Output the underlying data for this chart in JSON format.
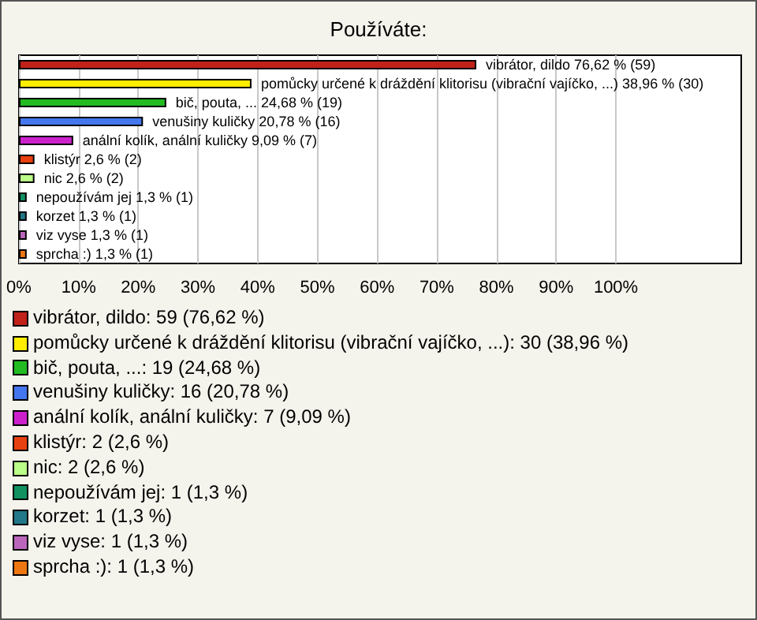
{
  "chart_data": {
    "type": "bar",
    "orientation": "horizontal",
    "title": "Používáte:",
    "categories": [
      null,
      null,
      null,
      null,
      null,
      null,
      null,
      null,
      null,
      null,
      null
    ],
    "values": [
      76.62,
      38.96,
      24.68,
      20.78,
      9.09,
      2.6,
      2.6,
      1.3,
      1.3,
      1.3,
      1.3
    ],
    "value_labels": [
      "vibrátor, dildo 76,62 % (59)",
      "pomůcky určené k dráždění klitorisu (vibrační vajíčko, ...) 38,96 % (30)",
      "bič, pouta, ... 24,68 % (19)",
      "venušiny kuličky 20,78 % (16)",
      "anální kolík, anální kuličky 9,09 % (7)",
      "klistýr 2,6 % (2)",
      "nic 2,6 % (2)",
      "nepoužívám jej 1,3 % (1)",
      "korzet 1,3 % (1)",
      "viz vyse 1,3 % (1)",
      "sprcha :) 1,3 % (1)"
    ],
    "colors": [
      "#c0221a",
      "#ffee00",
      "#22bb22",
      "#4477ee",
      "#cc22cc",
      "#e84010",
      "#bbff88",
      "#119060",
      "#227788",
      "#bb66bb",
      "#ee7711"
    ],
    "xlim": [
      0,
      121
    ],
    "xticks": [
      {
        "value": 0,
        "label": "0%"
      },
      {
        "value": 10,
        "label": "10%"
      },
      {
        "value": 20,
        "label": "20%"
      },
      {
        "value": 30,
        "label": "30%"
      },
      {
        "value": 40,
        "label": "40%"
      },
      {
        "value": 50,
        "label": "50%"
      },
      {
        "value": 60,
        "label": "60%"
      },
      {
        "value": 70,
        "label": "70%"
      },
      {
        "value": 80,
        "label": "80%"
      },
      {
        "value": 90,
        "label": "90%"
      },
      {
        "value": 100,
        "label": "100%"
      }
    ],
    "grid": "x",
    "tick_labels": "x",
    "annotations": [
      "vibrátor, dildo: 59 (76,62 %)",
      "pomůcky určené k dráždění klitorisu (vibrační vajíčko, ...): 30 (38,96 %)",
      "bič, pouta, ...: 19 (24,68 %)",
      "venušiny kuličky: 16 (20,78 %)",
      "anální kolík, anální kuličky: 7 (9,09 %)",
      "klistýr: 2 (2,6 %)",
      "nic: 2 (2,6 %)",
      "nepoužívám jej: 1 (1,3 %)",
      "korzet: 1 (1,3 %)",
      "viz vyse: 1 (1,3 %)",
      "sprcha :): 1 (1,3 %)"
    ]
  }
}
